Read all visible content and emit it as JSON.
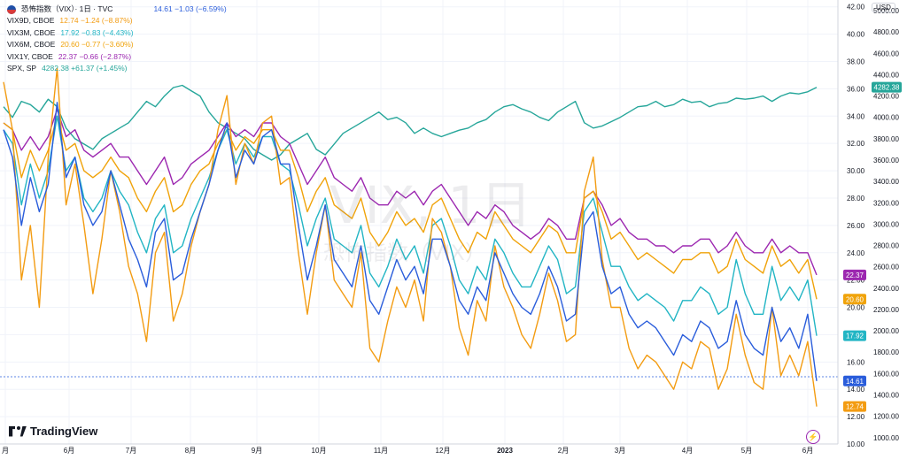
{
  "legend": {
    "main": {
      "name": "恐怖指数（VIX）· 1日 · TVC",
      "values": "14.61 −1.03 (−6.59%)"
    },
    "rows": [
      {
        "name": "VIX9D, CBOE",
        "values": "12.74 −1.24 (−8.87%)",
        "color": "#f39c12"
      },
      {
        "name": "VIX3M, CBOE",
        "values": "17.92 −0.83 (−4.43%)",
        "color": "#22b5c4"
      },
      {
        "name": "VIX6M, CBOE",
        "values": "20.60 −0.77 (−3.60%)",
        "color": "#f0a30a"
      },
      {
        "name": "VIX1Y, CBOE",
        "values": "22.37 −0.66 (−2.87%)",
        "color": "#9c27b0"
      },
      {
        "name": "SPX, SP",
        "values": "4282.38 +61.37 (+1.45%)",
        "color": "#26a69a"
      }
    ]
  },
  "currency": "USD",
  "watermark": {
    "symbol": "VIX, 1日",
    "description": "恐怖指数（VIX）"
  },
  "branding": "TradingView",
  "chart_data": {
    "type": "line",
    "x_labels": [
      "月",
      "6月",
      "7月",
      "8月",
      "9月",
      "10月",
      "11月",
      "12月",
      "2023",
      "2月",
      "3月",
      "4月",
      "5月",
      "6月"
    ],
    "left_scale_ticks": [
      "42.00",
      "40.00",
      "38.00",
      "36.00",
      "34.00",
      "32.00",
      "30.00",
      "28.00",
      "26.00",
      "24.00",
      "22.00",
      "20.00",
      "18.00",
      "16.00",
      "14.00",
      "12.00",
      "10.00"
    ],
    "right_scale_ticks": [
      "5000.00",
      "4800.00",
      "4600.00",
      "4400.00",
      "4200.00",
      "4000.00",
      "3800.00",
      "3600.00",
      "3400.00",
      "3200.00",
      "3000.00",
      "2800.00",
      "2600.00",
      "2400.00",
      "2200.00",
      "2000.00",
      "1800.00",
      "1600.00",
      "1400.00",
      "1200.00",
      "1000.00"
    ],
    "ylim_vix": [
      10,
      42.5
    ],
    "ylim_spx": [
      940,
      5100
    ],
    "series": [
      {
        "name": "VIX9D, CBOE",
        "color": "#f39c12",
        "last": "12.74",
        "values": [
          36.5,
          33.0,
          22.0,
          26.0,
          20.0,
          31.0,
          37.5,
          27.5,
          30.5,
          26.0,
          21.0,
          25.0,
          30.0,
          27.0,
          23.0,
          21.0,
          17.5,
          24.0,
          25.5,
          19.0,
          21.0,
          24.5,
          27.0,
          29.0,
          33.0,
          35.5,
          29.0,
          32.0,
          30.5,
          33.5,
          34.0,
          29.0,
          29.5,
          24.0,
          19.5,
          24.0,
          27.5,
          22.0,
          21.0,
          20.0,
          24.0,
          17.0,
          16.0,
          19.0,
          21.5,
          20.0,
          22.0,
          19.0,
          26.5,
          25.5,
          23.0,
          18.5,
          16.5,
          20.5,
          19.0,
          24.5,
          21.5,
          20.0,
          18.0,
          17.0,
          19.5,
          22.5,
          20.5,
          17.5,
          18.0,
          28.5,
          31.0,
          23.5,
          20.0,
          20.0,
          17.0,
          15.5,
          16.5,
          16.0,
          15.0,
          14.0,
          16.0,
          15.5,
          17.5,
          17.0,
          14.0,
          15.5,
          19.5,
          16.5,
          14.5,
          14.0,
          20.0,
          15.0,
          16.5,
          15.0,
          17.5,
          12.74
        ]
      },
      {
        "name": "VIX3M, CBOE",
        "color": "#22b5c4",
        "last": "17.92",
        "values": [
          33.0,
          32.0,
          27.5,
          30.5,
          28.0,
          30.0,
          34.0,
          30.0,
          31.0,
          28.0,
          27.0,
          28.0,
          30.0,
          28.5,
          27.5,
          25.5,
          24.0,
          26.5,
          27.5,
          24.0,
          24.5,
          26.5,
          28.0,
          29.5,
          31.5,
          33.0,
          30.5,
          32.0,
          31.0,
          32.5,
          32.5,
          30.5,
          30.0,
          27.5,
          24.5,
          26.5,
          28.0,
          25.0,
          24.5,
          24.0,
          26.0,
          22.5,
          21.5,
          23.0,
          25.0,
          23.5,
          24.5,
          22.5,
          26.0,
          26.5,
          24.5,
          22.0,
          21.0,
          23.0,
          22.0,
          25.0,
          24.0,
          22.5,
          21.5,
          21.5,
          23.0,
          24.5,
          23.5,
          21.0,
          21.5,
          27.0,
          28.0,
          25.5,
          23.0,
          23.0,
          21.5,
          20.5,
          21.0,
          20.5,
          20.0,
          19.0,
          20.5,
          20.5,
          21.5,
          21.0,
          19.5,
          20.0,
          23.5,
          21.0,
          19.5,
          19.5,
          23.0,
          20.5,
          21.5,
          20.5,
          22.0,
          17.92
        ]
      },
      {
        "name": "VIX6M, CBOE",
        "color": "#f0a30a",
        "last": "20.60",
        "values": [
          33.5,
          33.0,
          29.5,
          31.5,
          30.0,
          31.5,
          34.0,
          31.5,
          32.0,
          30.0,
          29.5,
          30.0,
          31.0,
          30.0,
          29.5,
          28.0,
          27.0,
          28.5,
          29.5,
          27.0,
          27.5,
          29.0,
          30.0,
          30.5,
          32.0,
          33.0,
          31.5,
          32.5,
          32.0,
          33.0,
          33.0,
          31.5,
          31.5,
          29.5,
          27.0,
          28.5,
          29.5,
          27.5,
          27.0,
          26.5,
          28.0,
          25.5,
          24.5,
          25.5,
          27.0,
          26.0,
          26.5,
          25.5,
          27.5,
          28.0,
          26.5,
          25.0,
          24.0,
          25.5,
          25.0,
          27.0,
          26.0,
          25.0,
          24.5,
          24.0,
          25.0,
          26.0,
          25.5,
          24.0,
          24.0,
          28.0,
          28.5,
          27.0,
          25.0,
          25.5,
          24.5,
          23.5,
          24.0,
          23.5,
          23.0,
          22.5,
          23.5,
          23.5,
          24.0,
          24.0,
          22.5,
          23.0,
          25.0,
          23.5,
          23.0,
          22.5,
          24.5,
          23.0,
          23.5,
          22.5,
          23.5,
          20.6
        ]
      },
      {
        "name": "VIX1Y, CBOE",
        "color": "#9c27b0",
        "last": "22.37",
        "values": [
          33.5,
          33.0,
          31.5,
          32.5,
          31.5,
          32.5,
          34.5,
          32.5,
          33.0,
          31.5,
          31.0,
          31.5,
          32.0,
          31.0,
          31.0,
          30.0,
          29.0,
          30.0,
          31.0,
          29.0,
          29.5,
          30.5,
          31.0,
          31.5,
          32.5,
          33.5,
          32.5,
          33.0,
          32.5,
          33.5,
          33.5,
          32.5,
          32.0,
          30.5,
          29.0,
          30.0,
          31.0,
          29.5,
          29.0,
          28.5,
          29.5,
          28.0,
          27.5,
          27.5,
          28.5,
          28.0,
          28.5,
          27.5,
          28.5,
          29.0,
          28.0,
          27.0,
          26.0,
          27.0,
          26.5,
          27.5,
          27.0,
          26.0,
          25.5,
          25.0,
          25.5,
          26.5,
          26.0,
          25.0,
          25.0,
          28.0,
          28.5,
          27.5,
          26.0,
          26.5,
          25.5,
          25.0,
          25.0,
          24.5,
          24.5,
          24.0,
          24.5,
          24.5,
          25.0,
          25.0,
          24.0,
          24.5,
          25.5,
          24.5,
          24.0,
          24.0,
          25.0,
          24.0,
          24.5,
          24.0,
          24.0,
          22.37
        ]
      },
      {
        "name": "恐怖指数（VIX）",
        "color": "#2a5ddb",
        "last": "14.61",
        "values": [
          33.0,
          31.0,
          26.0,
          29.5,
          27.0,
          29.0,
          35.0,
          29.5,
          31.0,
          27.5,
          26.0,
          27.0,
          30.0,
          27.5,
          25.0,
          23.5,
          21.5,
          25.5,
          26.5,
          22.0,
          22.5,
          25.0,
          27.0,
          29.0,
          31.5,
          33.5,
          29.5,
          31.5,
          30.5,
          32.5,
          33.0,
          30.5,
          30.5,
          26.0,
          22.0,
          24.5,
          27.5,
          23.5,
          22.5,
          21.5,
          24.5,
          20.5,
          19.5,
          21.5,
          23.5,
          22.0,
          23.0,
          21.0,
          25.0,
          25.0,
          23.0,
          20.5,
          19.5,
          21.5,
          20.5,
          24.0,
          22.5,
          21.0,
          20.0,
          19.5,
          21.0,
          23.0,
          21.5,
          19.0,
          19.5,
          26.0,
          27.0,
          23.0,
          21.0,
          21.5,
          19.5,
          18.5,
          19.0,
          18.5,
          17.5,
          16.5,
          18.0,
          17.5,
          19.0,
          18.5,
          17.0,
          17.5,
          20.5,
          18.0,
          17.0,
          16.5,
          20.0,
          17.5,
          18.5,
          17.0,
          19.5,
          14.61
        ]
      },
      {
        "name": "SPX, SP",
        "color": "#26a69a",
        "last": "4282.38",
        "values": [
          4100,
          4000,
          4150,
          4120,
          4050,
          4170,
          4100,
          3900,
          3800,
          3750,
          3700,
          3800,
          3850,
          3900,
          3950,
          4050,
          4150,
          4100,
          4200,
          4280,
          4300,
          4250,
          4200,
          4050,
          3950,
          3900,
          3850,
          3800,
          3700,
          3650,
          3600,
          3650,
          3750,
          3800,
          3850,
          3700,
          3650,
          3750,
          3850,
          3900,
          3950,
          4000,
          4050,
          3980,
          4000,
          3950,
          3850,
          3900,
          3850,
          3820,
          3850,
          3880,
          3900,
          3950,
          3980,
          4050,
          4100,
          4120,
          4080,
          4050,
          4000,
          3970,
          4050,
          4100,
          4150,
          3950,
          3900,
          3920,
          3960,
          4000,
          4050,
          4100,
          4110,
          4150,
          4100,
          4120,
          4170,
          4140,
          4150,
          4100,
          4130,
          4140,
          4180,
          4170,
          4180,
          4200,
          4150,
          4200,
          4230,
          4220,
          4240,
          4282.38
        ]
      }
    ]
  }
}
